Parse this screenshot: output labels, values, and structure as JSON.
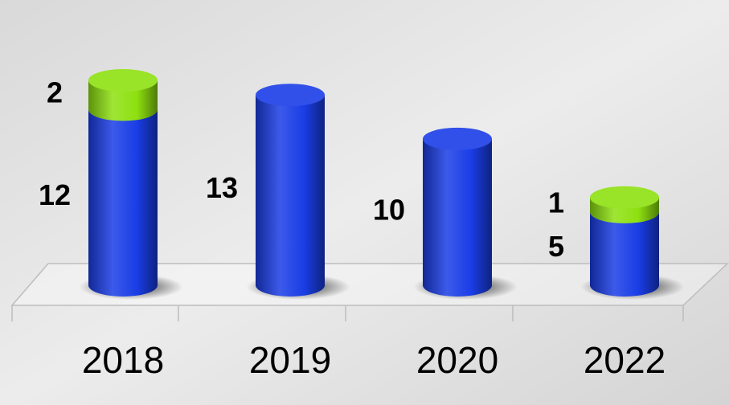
{
  "chart_data": {
    "type": "stacked-cylinder",
    "categories": [
      "2018",
      "2019",
      "2020",
      "2022"
    ],
    "series": [
      {
        "color": "#1a3de6",
        "values": [
          12,
          13,
          10,
          5
        ]
      },
      {
        "color": "#8ee010",
        "values": [
          2,
          null,
          null,
          1
        ]
      }
    ]
  }
}
